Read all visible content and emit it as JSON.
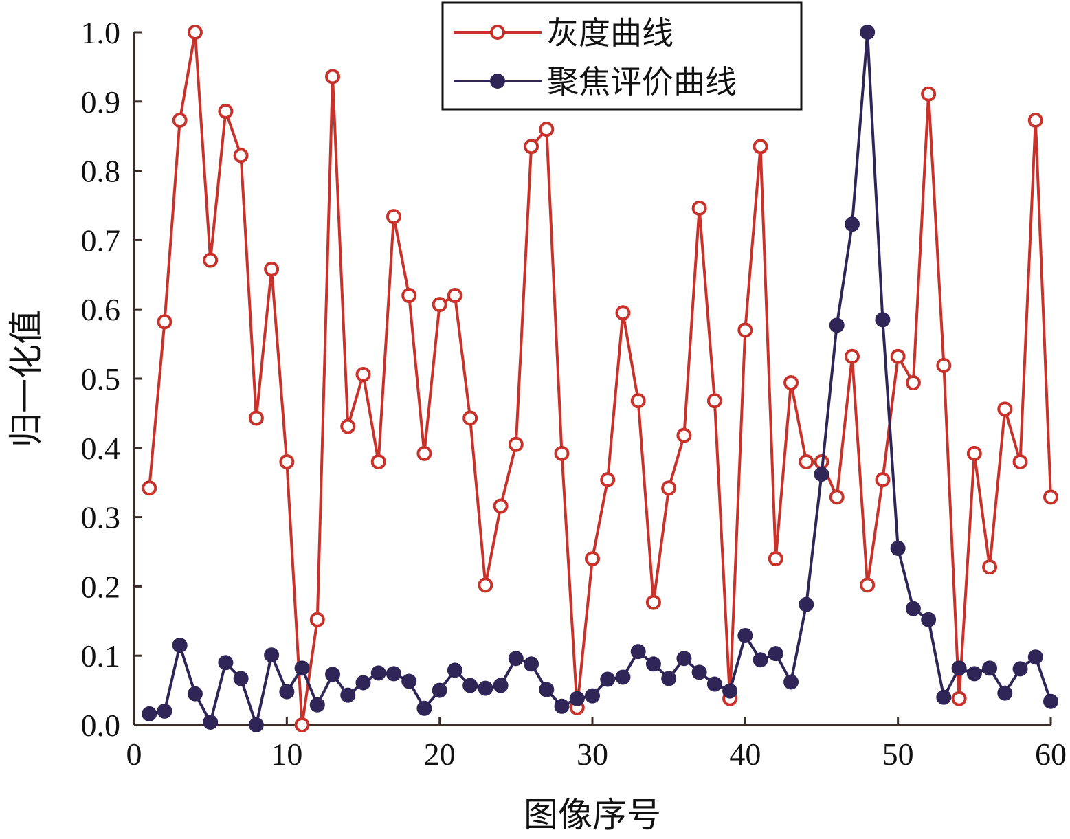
{
  "chart_data": {
    "type": "line",
    "xlabel": "图像序号",
    "ylabel": "归一化值",
    "xlim": [
      0,
      60
    ],
    "ylim": [
      0,
      1.0
    ],
    "xticks": [
      "0",
      "10",
      "20",
      "30",
      "40",
      "50",
      "60"
    ],
    "yticks": [
      "0.0",
      "0.1",
      "0.2",
      "0.3",
      "0.4",
      "0.5",
      "0.6",
      "0.7",
      "0.8",
      "0.9",
      "1.0"
    ],
    "grid": false,
    "legend_position": "top-right",
    "series": [
      {
        "name": "灰度曲线",
        "color": "#c8322a",
        "marker": "open-circle",
        "x": [
          1,
          2,
          3,
          4,
          5,
          6,
          7,
          8,
          9,
          10,
          11,
          12,
          13,
          14,
          15,
          16,
          17,
          18,
          19,
          20,
          21,
          22,
          23,
          24,
          25,
          26,
          27,
          28,
          29,
          30,
          31,
          32,
          33,
          34,
          35,
          36,
          37,
          38,
          39,
          40,
          41,
          42,
          43,
          44,
          45,
          46,
          47,
          48,
          49,
          50,
          51,
          52,
          53,
          54,
          55,
          56,
          57,
          58,
          59,
          60
        ],
        "values": [
          0.342,
          0.582,
          0.873,
          1.0,
          0.671,
          0.886,
          0.822,
          0.443,
          0.658,
          0.38,
          0.0,
          0.152,
          0.936,
          0.431,
          0.506,
          0.38,
          0.734,
          0.62,
          0.392,
          0.607,
          0.62,
          0.443,
          0.202,
          0.316,
          0.405,
          0.835,
          0.86,
          0.392,
          0.025,
          0.24,
          0.354,
          0.595,
          0.468,
          0.177,
          0.342,
          0.418,
          0.746,
          0.468,
          0.038,
          0.57,
          0.835,
          0.24,
          0.494,
          0.38,
          0.38,
          0.329,
          0.532,
          0.202,
          0.354,
          0.532,
          0.494,
          0.911,
          0.519,
          0.038,
          0.392,
          0.228,
          0.456,
          0.38,
          0.873,
          0.329
        ]
      },
      {
        "name": "聚焦评价曲线",
        "color": "#2f2557",
        "marker": "filled-circle",
        "x": [
          1,
          2,
          3,
          4,
          5,
          6,
          7,
          8,
          9,
          10,
          11,
          12,
          13,
          14,
          15,
          16,
          17,
          18,
          19,
          20,
          21,
          22,
          23,
          24,
          25,
          26,
          27,
          28,
          29,
          30,
          31,
          32,
          33,
          34,
          35,
          36,
          37,
          38,
          39,
          40,
          41,
          42,
          43,
          44,
          45,
          46,
          47,
          48,
          49,
          50,
          51,
          52,
          53,
          54,
          55,
          56,
          57,
          58,
          59,
          60
        ],
        "values": [
          0.016,
          0.02,
          0.115,
          0.045,
          0.004,
          0.09,
          0.067,
          0.0,
          0.101,
          0.048,
          0.082,
          0.029,
          0.073,
          0.043,
          0.061,
          0.075,
          0.074,
          0.063,
          0.024,
          0.05,
          0.079,
          0.057,
          0.053,
          0.057,
          0.096,
          0.088,
          0.051,
          0.027,
          0.038,
          0.042,
          0.066,
          0.069,
          0.106,
          0.088,
          0.067,
          0.096,
          0.076,
          0.059,
          0.049,
          0.129,
          0.094,
          0.103,
          0.062,
          0.174,
          0.362,
          0.577,
          0.723,
          1.0,
          0.585,
          0.255,
          0.168,
          0.152,
          0.04,
          0.082,
          0.074,
          0.082,
          0.046,
          0.081,
          0.098,
          0.034
        ]
      }
    ]
  }
}
